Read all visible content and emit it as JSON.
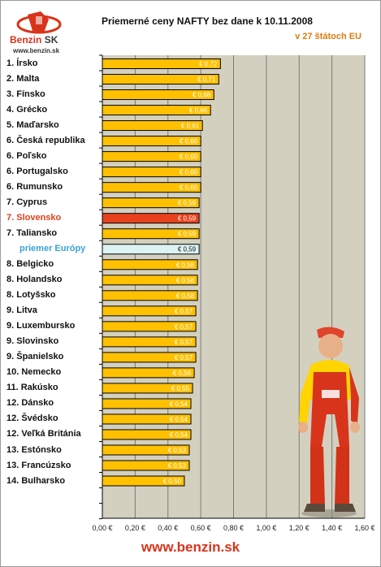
{
  "logo": {
    "brand_left": "Benzin",
    "brand_right": "SK",
    "url": "www.benzin.sk"
  },
  "title": "Priemerné ceny NAFTY bez dane k 10.11.2008",
  "subtitle": "v 27 štátoch EU",
  "footer": "www.benzin.sk",
  "colors": {
    "bar": "#ffc000",
    "highlight": "#e8411d",
    "average": "#ddf3f3",
    "plot_bg": "#d4d0c0",
    "grid": "#7a7a7a",
    "accent": "#d8341b"
  },
  "chart_data": {
    "type": "bar",
    "orientation": "horizontal",
    "title": "Priemerné ceny NAFTY bez dane k 10.11.2008",
    "subtitle": "v 27 štátoch EU",
    "categories": [
      "1. Írsko",
      "2. Malta",
      "3. Fínsko",
      "4. Grécko",
      "5. Maďarsko",
      "6. Česká republika",
      "6. Poľsko",
      "6. Portugalsko",
      "6. Rumunsko",
      "7. Cyprus",
      "7. Slovensko",
      "7. Taliansko",
      "priemer Európy",
      "8. Belgicko",
      "8. Holandsko",
      "8. Lotyšsko",
      "9. Litva",
      "9. Luxembursko",
      "9. Slovinsko",
      "9. Španielsko",
      "10. Nemecko",
      "11. Rakúsko",
      "12. Dánsko",
      "12. Švédsko",
      "12. Veľká Británia",
      "13. Estónsko",
      "13. Francúzsko",
      "14. Bulharsko"
    ],
    "values": [
      0.72,
      0.71,
      0.68,
      0.66,
      0.61,
      0.6,
      0.6,
      0.6,
      0.6,
      0.59,
      0.59,
      0.59,
      0.59,
      0.58,
      0.58,
      0.58,
      0.57,
      0.57,
      0.57,
      0.57,
      0.56,
      0.55,
      0.54,
      0.54,
      0.54,
      0.53,
      0.53,
      0.5
    ],
    "value_labels": [
      "€ 0,72",
      "€ 0,71",
      "€ 0,68",
      "€ 0,66",
      "€ 0,61",
      "€ 0,60",
      "€ 0,60",
      "€ 0,60",
      "€ 0,60",
      "€ 0,59",
      "€ 0,59",
      "€ 0,59",
      "€ 0,59",
      "€ 0,58",
      "€ 0,58",
      "€ 0,58",
      "€ 0,57",
      "€ 0,57",
      "€ 0,57",
      "€ 0,57",
      "€ 0,56",
      "€ 0,55",
      "€ 0,54",
      "€ 0,54",
      "€ 0,54",
      "€ 0,53",
      "€ 0,53",
      "€ 0,50"
    ],
    "highlight": "7. Slovensko",
    "average": "priemer Európy",
    "xlim": [
      0,
      1.6
    ],
    "x_ticks": [
      "0,00 €",
      "0,20 €",
      "0,40 €",
      "0,60 €",
      "0,80 €",
      "1,00 €",
      "1,20 €",
      "1,40 €",
      "1,60 €"
    ],
    "grid": true
  }
}
